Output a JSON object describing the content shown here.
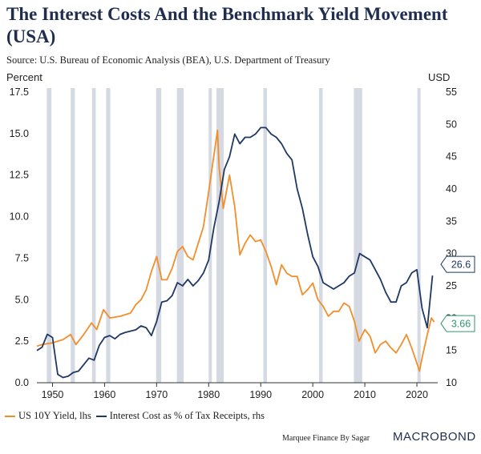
{
  "header": {
    "title": "The Interest Costs And the Benchmark Yield Movement (USA)",
    "source": "Source: U.S. Bureau of Economic Analysis (BEA), U.S. Department of Treasury"
  },
  "footer": {
    "credit": "Marquee Finance By Sagar",
    "brand": "MACROBOND"
  },
  "colors": {
    "yield": "#f28e2b",
    "interest": "#1f3864",
    "recession": "#d5d9e2",
    "axis": "#333333"
  },
  "chart_data": {
    "type": "line",
    "title": "The Interest Costs And the Benchmark Yield Movement (USA)",
    "left_axis": {
      "label": "Percent",
      "range": [
        0,
        17.5
      ],
      "ticks": [
        "0.0",
        "2.5",
        "5.0",
        "7.5",
        "10.0",
        "12.5",
        "15.0",
        "17.5"
      ],
      "tick_values": [
        0,
        2.5,
        5,
        7.5,
        10,
        12.5,
        15,
        17.5
      ]
    },
    "right_axis": {
      "label": "USD",
      "range": [
        10,
        55
      ],
      "ticks": [
        "10",
        "15",
        "20",
        "25",
        "30",
        "35",
        "40",
        "45",
        "50",
        "55"
      ],
      "tick_values": [
        10,
        15,
        20,
        25,
        30,
        35,
        40,
        45,
        50,
        55
      ]
    },
    "x_axis": {
      "range": [
        1947,
        2024
      ],
      "ticks": [
        "1950",
        "1960",
        "1970",
        "1980",
        "1990",
        "2000",
        "2010",
        "2020"
      ],
      "tick_values": [
        1950,
        1960,
        1970,
        1980,
        1990,
        2000,
        2010,
        2020
      ]
    },
    "recessions": [
      [
        1948.9,
        1949.8
      ],
      [
        1953.5,
        1954.3
      ],
      [
        1957.6,
        1958.3
      ],
      [
        1960.3,
        1961.1
      ],
      [
        1969.9,
        1970.9
      ],
      [
        1973.9,
        1975.2
      ],
      [
        1980.0,
        1980.6
      ],
      [
        1981.5,
        1982.9
      ],
      [
        1990.5,
        1991.2
      ],
      [
        2001.2,
        2001.9
      ],
      [
        2007.9,
        2009.5
      ],
      [
        2020.1,
        2020.4
      ]
    ],
    "series": [
      {
        "name": "US 10Y Yield, lhs",
        "axis": "left",
        "x": [
          1947,
          1948,
          1950,
          1952,
          1953.5,
          1954.5,
          1956,
          1957.5,
          1958.5,
          1959.8,
          1961,
          1963,
          1965,
          1966,
          1967,
          1968,
          1969,
          1970,
          1971,
          1972,
          1973,
          1974,
          1975,
          1976,
          1977,
          1978,
          1979,
          1980,
          1981.7,
          1982,
          1982.8,
          1984,
          1985,
          1986,
          1987,
          1988,
          1989,
          1990,
          1991,
          1992,
          1993,
          1994,
          1995,
          1996,
          1997,
          1998,
          1999,
          2000,
          2001,
          2002,
          2003,
          2004,
          2005,
          2006,
          2007,
          2008,
          2008.9,
          2010,
          2011,
          2012,
          2013,
          2014,
          2015,
          2016,
          2017,
          2018,
          2019,
          2020.5,
          2021,
          2022,
          2022.8,
          2023.3
        ],
        "values": [
          2.2,
          2.3,
          2.4,
          2.6,
          2.9,
          2.3,
          2.9,
          3.6,
          3.2,
          4.4,
          3.9,
          4.0,
          4.2,
          4.7,
          5.0,
          5.6,
          6.7,
          7.6,
          6.2,
          6.2,
          6.9,
          7.9,
          8.2,
          7.6,
          7.4,
          8.4,
          9.4,
          11.5,
          15.2,
          13.0,
          10.5,
          12.5,
          10.6,
          7.7,
          8.4,
          8.9,
          8.5,
          8.6,
          7.9,
          7.0,
          5.9,
          7.1,
          6.6,
          6.4,
          6.4,
          5.3,
          5.6,
          6.0,
          5.0,
          4.6,
          4.0,
          4.3,
          4.3,
          4.8,
          4.6,
          3.7,
          2.5,
          3.2,
          2.8,
          1.8,
          2.3,
          2.5,
          2.1,
          1.8,
          2.3,
          2.9,
          2.1,
          0.7,
          1.5,
          2.9,
          3.9,
          3.66
        ]
      },
      {
        "name": "Interest Cost as % of Tax Receipts, rhs",
        "axis": "right",
        "x": [
          1947,
          1948,
          1949,
          1950,
          1951,
          1952,
          1953,
          1954,
          1955,
          1956,
          1957,
          1958,
          1959,
          1960,
          1961,
          1962,
          1963,
          1964,
          1965,
          1966,
          1967,
          1968,
          1969,
          1970,
          1971,
          1972,
          1973,
          1974,
          1975,
          1976,
          1977,
          1978,
          1979,
          1980,
          1981,
          1982,
          1983,
          1984,
          1985,
          1986,
          1987,
          1988,
          1989,
          1990,
          1991,
          1992,
          1993,
          1994,
          1995,
          1996,
          1997,
          1998,
          1999,
          2000,
          2001,
          2002,
          2003,
          2004,
          2005,
          2006,
          2007,
          2008,
          2009,
          2010,
          2011,
          2012,
          2013,
          2014,
          2015,
          2016,
          2017,
          2018,
          2019,
          2020,
          2021,
          2022,
          2023
        ],
        "values": [
          15.0,
          15.5,
          17.5,
          17.0,
          11.3,
          10.8,
          11.0,
          11.6,
          11.8,
          12.8,
          13.8,
          13.5,
          15.8,
          17.0,
          17.3,
          16.8,
          17.5,
          17.8,
          18.0,
          18.2,
          18.8,
          18.5,
          17.3,
          19.5,
          22.5,
          22.7,
          23.5,
          25.5,
          25.0,
          26.0,
          25.0,
          25.8,
          27.0,
          29.0,
          34.0,
          38.0,
          43.0,
          45.0,
          48.5,
          47.0,
          48.0,
          48.0,
          48.5,
          49.5,
          49.5,
          48.5,
          48.0,
          47.0,
          45.5,
          44.5,
          40.0,
          37.0,
          33.0,
          29.5,
          28.0,
          25.5,
          25.0,
          24.5,
          25.0,
          25.5,
          26.5,
          27.0,
          30.0,
          29.5,
          29.0,
          27.5,
          26.0,
          24.0,
          22.5,
          22.5,
          25.0,
          25.5,
          27.0,
          27.5,
          21.5,
          18.5,
          26.6
        ]
      }
    ],
    "end_labels": {
      "interest": "26.6",
      "yield": "3.66"
    },
    "legend_position": "bottom-left"
  }
}
